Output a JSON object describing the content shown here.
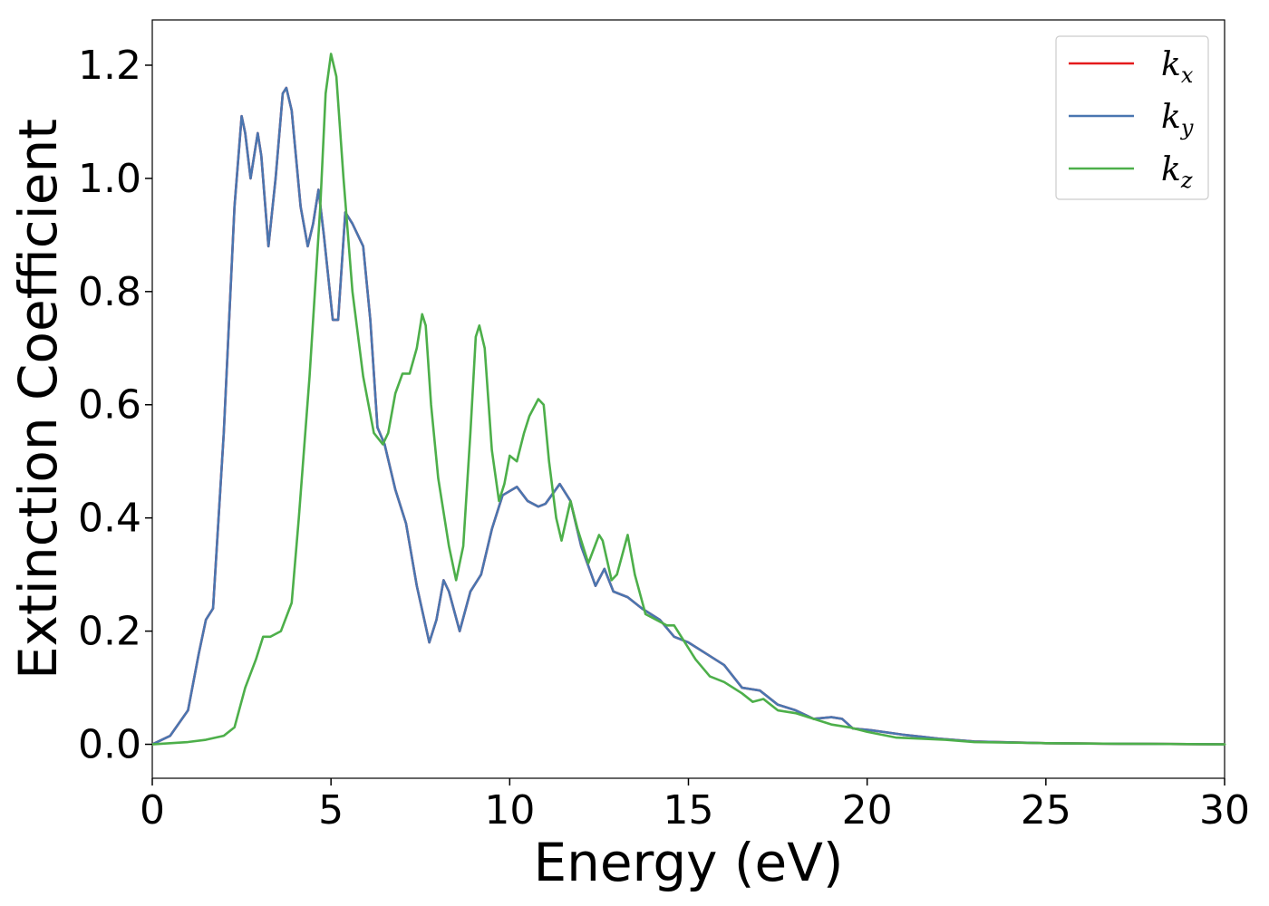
{
  "chart_data": {
    "type": "line",
    "xlabel": "Energy (eV)",
    "ylabel": "Extinction Coefficient",
    "xlim": [
      0,
      30
    ],
    "ylim": [
      -0.06,
      1.28
    ],
    "xticks": [
      0,
      5,
      10,
      15,
      20,
      25,
      30
    ],
    "yticks": [
      0.0,
      0.2,
      0.4,
      0.6,
      0.8,
      1.0,
      1.2
    ],
    "xtick_labels": [
      "0",
      "5",
      "10",
      "15",
      "20",
      "25",
      "30"
    ],
    "ytick_labels": [
      "0.0",
      "0.2",
      "0.4",
      "0.6",
      "0.8",
      "1.0",
      "1.2"
    ],
    "grid": false,
    "legend_position": "top-right",
    "series": [
      {
        "name": "k_x",
        "legend_main": "k",
        "legend_sub": "x",
        "color": "#e41a1c",
        "points": [
          [
            0,
            0
          ],
          [
            0.5,
            0.015
          ],
          [
            1.0,
            0.06
          ],
          [
            1.3,
            0.16
          ],
          [
            1.5,
            0.22
          ],
          [
            1.7,
            0.24
          ],
          [
            2.0,
            0.55
          ],
          [
            2.3,
            0.95
          ],
          [
            2.5,
            1.11
          ],
          [
            2.6,
            1.08
          ],
          [
            2.75,
            1.0
          ],
          [
            2.95,
            1.08
          ],
          [
            3.05,
            1.04
          ],
          [
            3.25,
            0.88
          ],
          [
            3.45,
            1.0
          ],
          [
            3.65,
            1.15
          ],
          [
            3.75,
            1.16
          ],
          [
            3.9,
            1.12
          ],
          [
            4.15,
            0.95
          ],
          [
            4.35,
            0.88
          ],
          [
            4.5,
            0.92
          ],
          [
            4.65,
            0.98
          ],
          [
            4.8,
            0.9
          ],
          [
            5.05,
            0.75
          ],
          [
            5.2,
            0.75
          ],
          [
            5.4,
            0.94
          ],
          [
            5.6,
            0.92
          ],
          [
            5.9,
            0.88
          ],
          [
            6.1,
            0.75
          ],
          [
            6.3,
            0.56
          ],
          [
            6.5,
            0.53
          ],
          [
            6.8,
            0.45
          ],
          [
            7.1,
            0.39
          ],
          [
            7.4,
            0.28
          ],
          [
            7.75,
            0.18
          ],
          [
            7.95,
            0.22
          ],
          [
            8.15,
            0.29
          ],
          [
            8.3,
            0.27
          ],
          [
            8.6,
            0.2
          ],
          [
            8.9,
            0.27
          ],
          [
            9.2,
            0.3
          ],
          [
            9.5,
            0.38
          ],
          [
            9.8,
            0.44
          ],
          [
            10.2,
            0.455
          ],
          [
            10.5,
            0.43
          ],
          [
            10.8,
            0.42
          ],
          [
            11.0,
            0.425
          ],
          [
            11.4,
            0.46
          ],
          [
            11.7,
            0.43
          ],
          [
            12.0,
            0.35
          ],
          [
            12.4,
            0.28
          ],
          [
            12.65,
            0.31
          ],
          [
            12.9,
            0.27
          ],
          [
            13.3,
            0.26
          ],
          [
            13.7,
            0.24
          ],
          [
            14.2,
            0.22
          ],
          [
            14.6,
            0.19
          ],
          [
            15.0,
            0.18
          ],
          [
            15.5,
            0.16
          ],
          [
            16.0,
            0.14
          ],
          [
            16.5,
            0.1
          ],
          [
            17.0,
            0.095
          ],
          [
            17.5,
            0.07
          ],
          [
            18.0,
            0.06
          ],
          [
            18.5,
            0.045
          ],
          [
            19.0,
            0.048
          ],
          [
            19.3,
            0.045
          ],
          [
            19.6,
            0.028
          ],
          [
            20.1,
            0.025
          ],
          [
            21.0,
            0.017
          ],
          [
            22.0,
            0.01
          ],
          [
            23.0,
            0.005
          ],
          [
            25.0,
            0.002
          ],
          [
            27.0,
            0.001
          ],
          [
            30.0,
            0.0
          ]
        ]
      },
      {
        "name": "k_y",
        "legend_main": "k",
        "legend_sub": "y",
        "color": "#4a76b0",
        "points": [
          [
            0,
            0
          ],
          [
            0.5,
            0.015
          ],
          [
            1.0,
            0.06
          ],
          [
            1.3,
            0.16
          ],
          [
            1.5,
            0.22
          ],
          [
            1.7,
            0.24
          ],
          [
            2.0,
            0.55
          ],
          [
            2.3,
            0.95
          ],
          [
            2.5,
            1.11
          ],
          [
            2.6,
            1.08
          ],
          [
            2.75,
            1.0
          ],
          [
            2.95,
            1.08
          ],
          [
            3.05,
            1.04
          ],
          [
            3.25,
            0.88
          ],
          [
            3.45,
            1.0
          ],
          [
            3.65,
            1.15
          ],
          [
            3.75,
            1.16
          ],
          [
            3.9,
            1.12
          ],
          [
            4.15,
            0.95
          ],
          [
            4.35,
            0.88
          ],
          [
            4.5,
            0.92
          ],
          [
            4.65,
            0.98
          ],
          [
            4.8,
            0.9
          ],
          [
            5.05,
            0.75
          ],
          [
            5.2,
            0.75
          ],
          [
            5.4,
            0.94
          ],
          [
            5.6,
            0.92
          ],
          [
            5.9,
            0.88
          ],
          [
            6.1,
            0.75
          ],
          [
            6.3,
            0.56
          ],
          [
            6.5,
            0.53
          ],
          [
            6.8,
            0.45
          ],
          [
            7.1,
            0.39
          ],
          [
            7.4,
            0.28
          ],
          [
            7.75,
            0.18
          ],
          [
            7.95,
            0.22
          ],
          [
            8.15,
            0.29
          ],
          [
            8.3,
            0.27
          ],
          [
            8.6,
            0.2
          ],
          [
            8.9,
            0.27
          ],
          [
            9.2,
            0.3
          ],
          [
            9.5,
            0.38
          ],
          [
            9.8,
            0.44
          ],
          [
            10.2,
            0.455
          ],
          [
            10.5,
            0.43
          ],
          [
            10.8,
            0.42
          ],
          [
            11.0,
            0.425
          ],
          [
            11.4,
            0.46
          ],
          [
            11.7,
            0.43
          ],
          [
            12.0,
            0.35
          ],
          [
            12.4,
            0.28
          ],
          [
            12.65,
            0.31
          ],
          [
            12.9,
            0.27
          ],
          [
            13.3,
            0.26
          ],
          [
            13.7,
            0.24
          ],
          [
            14.2,
            0.22
          ],
          [
            14.6,
            0.19
          ],
          [
            15.0,
            0.18
          ],
          [
            15.5,
            0.16
          ],
          [
            16.0,
            0.14
          ],
          [
            16.5,
            0.1
          ],
          [
            17.0,
            0.095
          ],
          [
            17.5,
            0.07
          ],
          [
            18.0,
            0.06
          ],
          [
            18.5,
            0.045
          ],
          [
            19.0,
            0.048
          ],
          [
            19.3,
            0.045
          ],
          [
            19.6,
            0.028
          ],
          [
            20.1,
            0.025
          ],
          [
            21.0,
            0.017
          ],
          [
            22.0,
            0.01
          ],
          [
            23.0,
            0.005
          ],
          [
            25.0,
            0.002
          ],
          [
            27.0,
            0.001
          ],
          [
            30.0,
            0.0
          ]
        ]
      },
      {
        "name": "k_z",
        "legend_main": "k",
        "legend_sub": "z",
        "color": "#4daf4a",
        "points": [
          [
            0,
            0
          ],
          [
            1.0,
            0.004
          ],
          [
            1.5,
            0.008
          ],
          [
            2.0,
            0.015
          ],
          [
            2.3,
            0.03
          ],
          [
            2.6,
            0.1
          ],
          [
            2.9,
            0.15
          ],
          [
            3.1,
            0.19
          ],
          [
            3.3,
            0.19
          ],
          [
            3.6,
            0.2
          ],
          [
            3.9,
            0.25
          ],
          [
            4.1,
            0.4
          ],
          [
            4.4,
            0.65
          ],
          [
            4.7,
            0.95
          ],
          [
            4.85,
            1.15
          ],
          [
            5.0,
            1.22
          ],
          [
            5.15,
            1.18
          ],
          [
            5.35,
            1.0
          ],
          [
            5.6,
            0.8
          ],
          [
            5.9,
            0.65
          ],
          [
            6.2,
            0.55
          ],
          [
            6.45,
            0.53
          ],
          [
            6.6,
            0.55
          ],
          [
            6.8,
            0.62
          ],
          [
            7.0,
            0.655
          ],
          [
            7.2,
            0.655
          ],
          [
            7.4,
            0.7
          ],
          [
            7.55,
            0.76
          ],
          [
            7.65,
            0.74
          ],
          [
            7.8,
            0.6
          ],
          [
            8.0,
            0.47
          ],
          [
            8.3,
            0.35
          ],
          [
            8.5,
            0.29
          ],
          [
            8.7,
            0.35
          ],
          [
            8.9,
            0.55
          ],
          [
            9.05,
            0.72
          ],
          [
            9.15,
            0.74
          ],
          [
            9.3,
            0.7
          ],
          [
            9.5,
            0.52
          ],
          [
            9.7,
            0.43
          ],
          [
            9.85,
            0.46
          ],
          [
            10.0,
            0.51
          ],
          [
            10.2,
            0.5
          ],
          [
            10.4,
            0.55
          ],
          [
            10.55,
            0.58
          ],
          [
            10.8,
            0.61
          ],
          [
            10.95,
            0.6
          ],
          [
            11.1,
            0.5
          ],
          [
            11.3,
            0.4
          ],
          [
            11.45,
            0.36
          ],
          [
            11.7,
            0.43
          ],
          [
            11.9,
            0.38
          ],
          [
            12.2,
            0.32
          ],
          [
            12.5,
            0.37
          ],
          [
            12.6,
            0.36
          ],
          [
            12.85,
            0.29
          ],
          [
            13.0,
            0.3
          ],
          [
            13.3,
            0.37
          ],
          [
            13.5,
            0.3
          ],
          [
            13.8,
            0.23
          ],
          [
            14.1,
            0.22
          ],
          [
            14.4,
            0.21
          ],
          [
            14.6,
            0.21
          ],
          [
            14.9,
            0.18
          ],
          [
            15.2,
            0.15
          ],
          [
            15.6,
            0.12
          ],
          [
            16.0,
            0.11
          ],
          [
            16.5,
            0.09
          ],
          [
            16.8,
            0.075
          ],
          [
            17.1,
            0.08
          ],
          [
            17.5,
            0.06
          ],
          [
            18.0,
            0.055
          ],
          [
            18.5,
            0.045
          ],
          [
            19.0,
            0.035
          ],
          [
            19.5,
            0.03
          ],
          [
            20.0,
            0.022
          ],
          [
            20.8,
            0.012
          ],
          [
            21.5,
            0.01
          ],
          [
            22.2,
            0.008
          ],
          [
            23.0,
            0.004
          ],
          [
            25.0,
            0.002
          ],
          [
            27.0,
            0.001
          ],
          [
            30.0,
            0.0
          ]
        ]
      }
    ]
  }
}
